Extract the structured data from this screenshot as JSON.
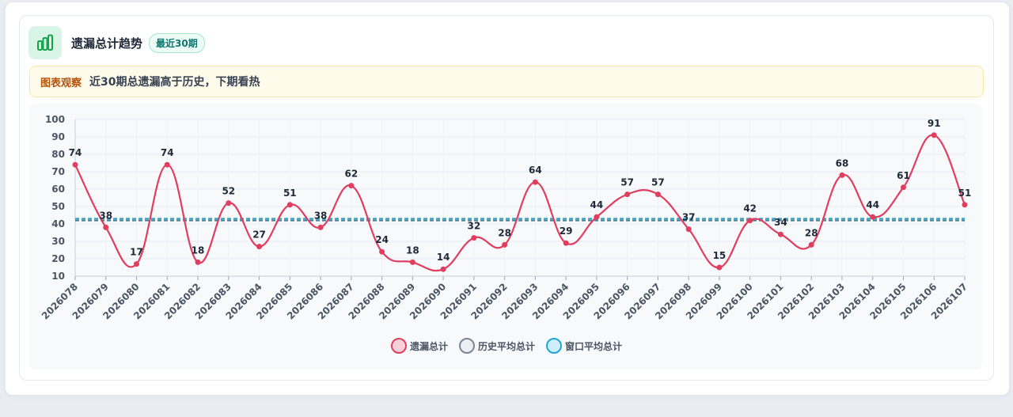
{
  "header": {
    "title": "遗漏总计趋势",
    "badge": "最近30期",
    "icon": "bar-chart-icon"
  },
  "insight": {
    "label": "图表观察",
    "text": "近30期总遗漏高于历史，下期看热"
  },
  "colors": {
    "series": "#e03e5f",
    "history_avg": "#3f7f9a",
    "window_avg": "#1ea7d6",
    "icon": "#16a34a"
  },
  "chart_data": {
    "type": "line",
    "categories": [
      "2026078",
      "2026079",
      "2026080",
      "2026081",
      "2026082",
      "2026083",
      "2026084",
      "2026085",
      "2026086",
      "2026087",
      "2026088",
      "2026089",
      "2026090",
      "2026091",
      "2026092",
      "2026093",
      "2026094",
      "2026095",
      "2026096",
      "2026097",
      "2026098",
      "2026099",
      "2026100",
      "2026101",
      "2026102",
      "2026103",
      "2026104",
      "2026105",
      "2026106",
      "2026107"
    ],
    "series": [
      {
        "name": "遗漏总计",
        "values": [
          74,
          38,
          17,
          74,
          18,
          52,
          27,
          51,
          38,
          62,
          24,
          18,
          14,
          32,
          28,
          64,
          29,
          44,
          57,
          57,
          37,
          15,
          42,
          34,
          28,
          68,
          44,
          61,
          91,
          51
        ]
      },
      {
        "name": "历史平均总计",
        "values": [
          42,
          42,
          42,
          42,
          42,
          42,
          42,
          42,
          42,
          42,
          42,
          42,
          42,
          42,
          42,
          42,
          42,
          42,
          42,
          42,
          42,
          42,
          42,
          42,
          42,
          42,
          42,
          42,
          42,
          42
        ]
      },
      {
        "name": "窗口平均总计",
        "values": [
          43,
          43,
          43,
          43,
          43,
          43,
          43,
          43,
          43,
          43,
          43,
          43,
          43,
          43,
          43,
          43,
          43,
          43,
          43,
          43,
          43,
          43,
          43,
          43,
          43,
          43,
          43,
          43,
          43,
          43
        ]
      }
    ],
    "yticks": [
      10,
      20,
      30,
      40,
      50,
      60,
      70,
      80,
      90,
      100
    ],
    "ylim": [
      10,
      100
    ],
    "grid": true,
    "legend_position": "bottom"
  }
}
